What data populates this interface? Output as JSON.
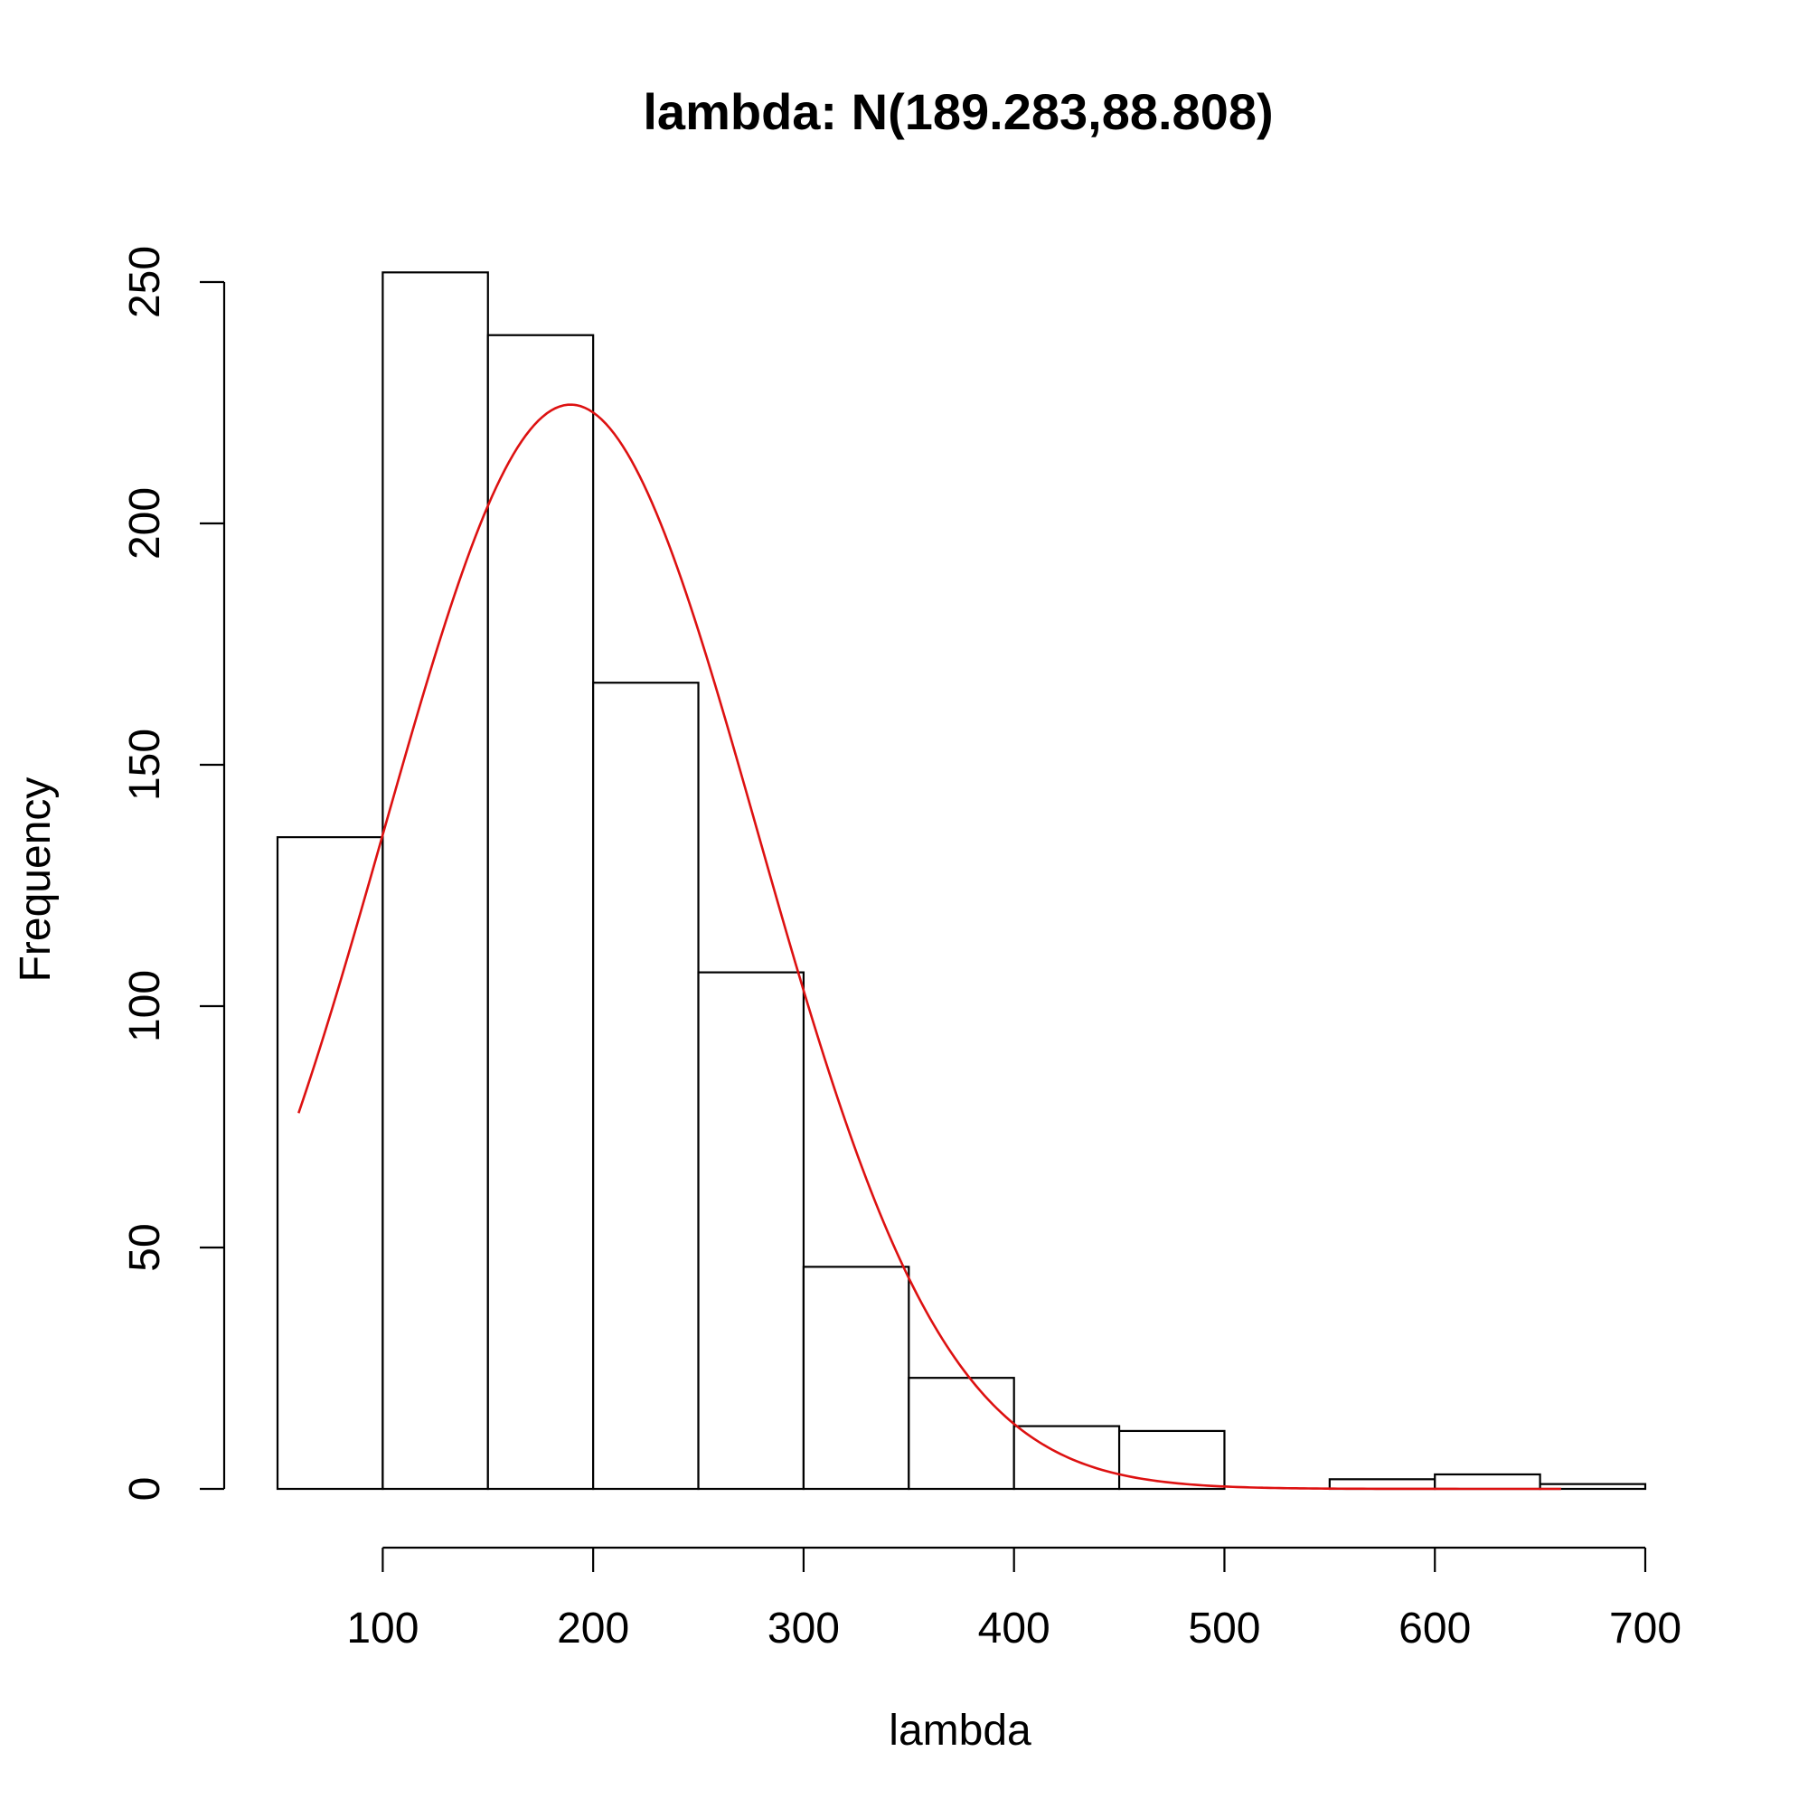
{
  "chart_data": {
    "type": "bar",
    "title": "lambda: N(189.283,88.808)",
    "xlabel": "lambda",
    "ylabel": "Frequency",
    "bins": [
      [
        50,
        100
      ],
      [
        100,
        150
      ],
      [
        150,
        200
      ],
      [
        200,
        250
      ],
      [
        250,
        300
      ],
      [
        300,
        350
      ],
      [
        350,
        400
      ],
      [
        400,
        450
      ],
      [
        450,
        500
      ],
      [
        500,
        550
      ],
      [
        550,
        600
      ],
      [
        600,
        650
      ],
      [
        650,
        700
      ]
    ],
    "values": [
      135,
      252,
      239,
      167,
      107,
      46,
      23,
      13,
      12,
      0,
      2,
      3,
      1
    ],
    "xlim": [
      50,
      700
    ],
    "ylim": [
      0,
      250
    ],
    "xticks": [
      100,
      200,
      300,
      400,
      500,
      600,
      700
    ],
    "yticks": [
      0,
      50,
      100,
      150,
      200,
      250
    ],
    "curve": {
      "distribution": "normal",
      "mean": 189.283,
      "sd": 88.808,
      "x_range": [
        60,
        660
      ],
      "color": "#dd1111"
    },
    "grid": false
  }
}
